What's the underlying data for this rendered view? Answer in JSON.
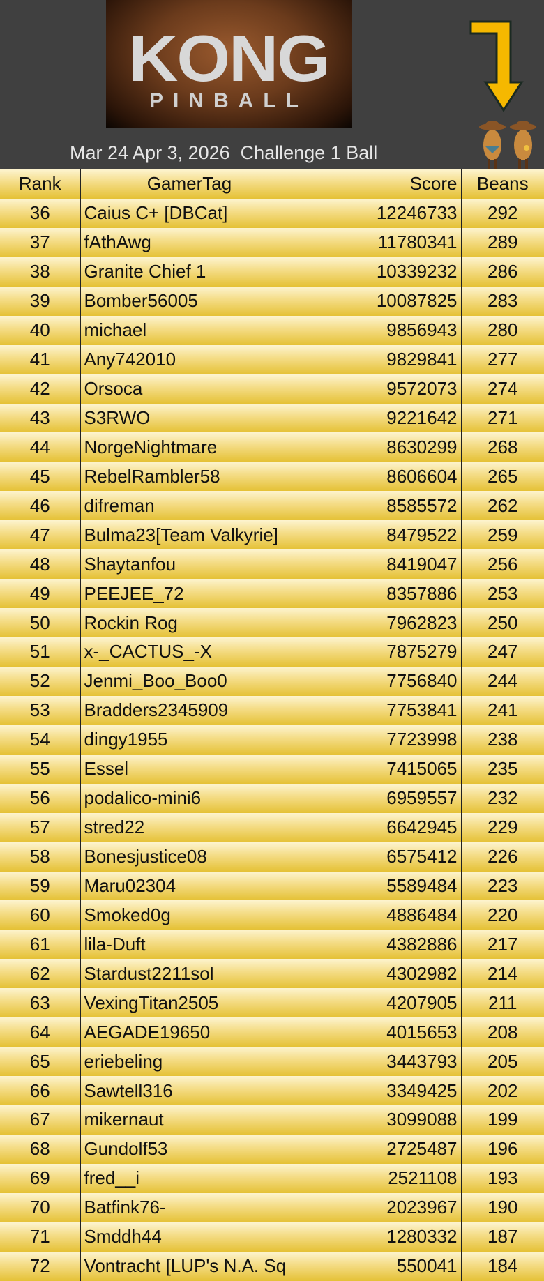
{
  "header": {
    "logo_text": "KONG",
    "logo_subtext": "PINBALL",
    "title": "Mar 24 Apr 3, 2026  Challenge 1 Ball",
    "arrow_color": "#f5b800",
    "arrow_icon": "down-arrow-icon",
    "mascot_icon": "cowboy-beans-icon"
  },
  "table": {
    "columns": [
      "Rank",
      "GamerTag",
      "Score",
      "Beans"
    ],
    "rows": [
      [
        "36",
        "Caius C+ [DBCat]",
        "12246733",
        "292"
      ],
      [
        "37",
        "fAthAwg",
        "11780341",
        "289"
      ],
      [
        "38",
        "Granite Chief 1",
        "10339232",
        "286"
      ],
      [
        "39",
        "Bomber56005",
        "10087825",
        "283"
      ],
      [
        "40",
        "michael",
        "9856943",
        "280"
      ],
      [
        "41",
        "Any742010",
        "9829841",
        "277"
      ],
      [
        "42",
        "Orsoca",
        "9572073",
        "274"
      ],
      [
        "43",
        "S3RWO",
        "9221642",
        "271"
      ],
      [
        "44",
        "NorgeNightmare",
        "8630299",
        "268"
      ],
      [
        "45",
        "RebelRambler58",
        "8606604",
        "265"
      ],
      [
        "46",
        "difreman",
        "8585572",
        "262"
      ],
      [
        "47",
        "Bulma23[Team Valkyrie]",
        "8479522",
        "259"
      ],
      [
        "48",
        "Shaytanfou",
        "8419047",
        "256"
      ],
      [
        "49",
        "PEEJEE_72",
        "8357886",
        "253"
      ],
      [
        "50",
        "Rockin Rog",
        "7962823",
        "250"
      ],
      [
        "51",
        "x-_CACTUS_-X",
        "7875279",
        "247"
      ],
      [
        "52",
        "Jenmi_Boo_Boo0",
        "7756840",
        "244"
      ],
      [
        "53",
        "Bradders2345909",
        "7753841",
        "241"
      ],
      [
        "54",
        "dingy1955",
        "7723998",
        "238"
      ],
      [
        "55",
        "Essel",
        "7415065",
        "235"
      ],
      [
        "56",
        "podalico-mini6",
        "6959557",
        "232"
      ],
      [
        "57",
        "stred22",
        "6642945",
        "229"
      ],
      [
        "58",
        "Bonesjustice08",
        "6575412",
        "226"
      ],
      [
        "59",
        "Maru02304",
        "5589484",
        "223"
      ],
      [
        "60",
        "Smoked0g",
        "4886484",
        "220"
      ],
      [
        "61",
        "lila-Duft",
        "4382886",
        "217"
      ],
      [
        "62",
        "Stardust2211sol",
        "4302982",
        "214"
      ],
      [
        "63",
        "VexingTitan2505",
        "4207905",
        "211"
      ],
      [
        "64",
        "AEGADE19650",
        "4015653",
        "208"
      ],
      [
        "65",
        "eriebeling",
        "3443793",
        "205"
      ],
      [
        "66",
        "Sawtell316",
        "3349425",
        "202"
      ],
      [
        "67",
        "mikernaut",
        "3099088",
        "199"
      ],
      [
        "68",
        "Gundolf53",
        "2725487",
        "196"
      ],
      [
        "69",
        "fred__i",
        "2521108",
        "193"
      ],
      [
        "70",
        "Batfink76-",
        "2023967",
        "190"
      ],
      [
        "71",
        "Smddh44",
        "1280332",
        "187"
      ],
      [
        "72",
        "Vontracht [LUP's N.A. Sq",
        "550041",
        "184"
      ]
    ]
  }
}
